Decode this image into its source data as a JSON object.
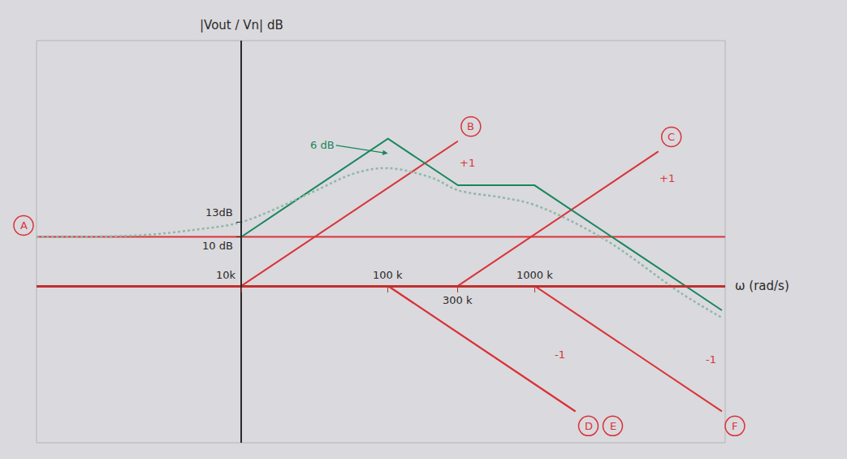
{
  "chart_data": {
    "type": "line",
    "xlabel": "ω (rad/s)",
    "ylabel": "|Vout / Vn| dB",
    "log": "x",
    "grid": false,
    "xlim": [
      400,
      20000000
    ],
    "ylim": [
      -32,
      50
    ],
    "xticks": [
      {
        "value": 10000,
        "label": "10k"
      },
      {
        "value": 100000,
        "label": "100 k"
      },
      {
        "value": 300000,
        "label": "300 k"
      },
      {
        "value": 1000000,
        "label": "1000 k"
      }
    ],
    "yticks": [
      {
        "value": 10,
        "label": "10 dB"
      },
      {
        "value": 13,
        "label": "13dB"
      }
    ],
    "series": [
      {
        "name": "A",
        "color": "#d8343a",
        "x": [
          400,
          20000000
        ],
        "values": [
          10,
          10
        ]
      },
      {
        "name": "B",
        "color": "#d8343a",
        "x": [
          10000,
          300000
        ],
        "values": [
          0,
          29.5
        ]
      },
      {
        "name": "C",
        "color": "#d8343a",
        "x": [
          300000,
          7000000
        ],
        "values": [
          0,
          27.4
        ]
      },
      {
        "name": "D",
        "color": "#d8343a",
        "x": [
          100000,
          1900000
        ],
        "values": [
          0,
          -25.6
        ]
      },
      {
        "name": "E",
        "color": "#d8343a",
        "x": [
          100000,
          1900000
        ],
        "values": [
          0,
          -25.6
        ]
      },
      {
        "name": "F",
        "color": "#d8343a",
        "x": [
          1000000,
          19000000
        ],
        "values": [
          0,
          -25.6
        ]
      },
      {
        "color": "#16875a",
        "x": [
          10000,
          100000,
          300000,
          1000000,
          19000000
        ],
        "values": [
          10,
          30,
          20.5,
          20.5,
          -5
        ]
      },
      {
        "color": "#8fb8a6",
        "line_style": "dotted",
        "x": [
          400,
          2000,
          5000,
          10000,
          30000,
          60000,
          100000,
          200000,
          300000,
          600000,
          1000000,
          3000000,
          10000000,
          19000000
        ],
        "values": [
          10,
          10.3,
          11.5,
          13,
          19,
          23,
          24,
          22,
          19.5,
          18,
          16.5,
          9.5,
          -1.5,
          -6.5
        ]
      }
    ],
    "annotations": [
      {
        "text": "+1",
        "x": 350000,
        "y": 25,
        "color": "#d8343a"
      },
      {
        "text": "+1",
        "x": 8000000,
        "y": 22,
        "color": "#d8343a"
      },
      {
        "text": "-1",
        "x": 1500000,
        "y": -14,
        "color": "#d8343a"
      },
      {
        "text": "-1",
        "x": 16000000,
        "y": -15,
        "color": "#d8343a"
      },
      {
        "text": "6 dB",
        "x": 100000,
        "y": 27,
        "color": "#16875a",
        "marker": "arrow"
      }
    ]
  }
}
